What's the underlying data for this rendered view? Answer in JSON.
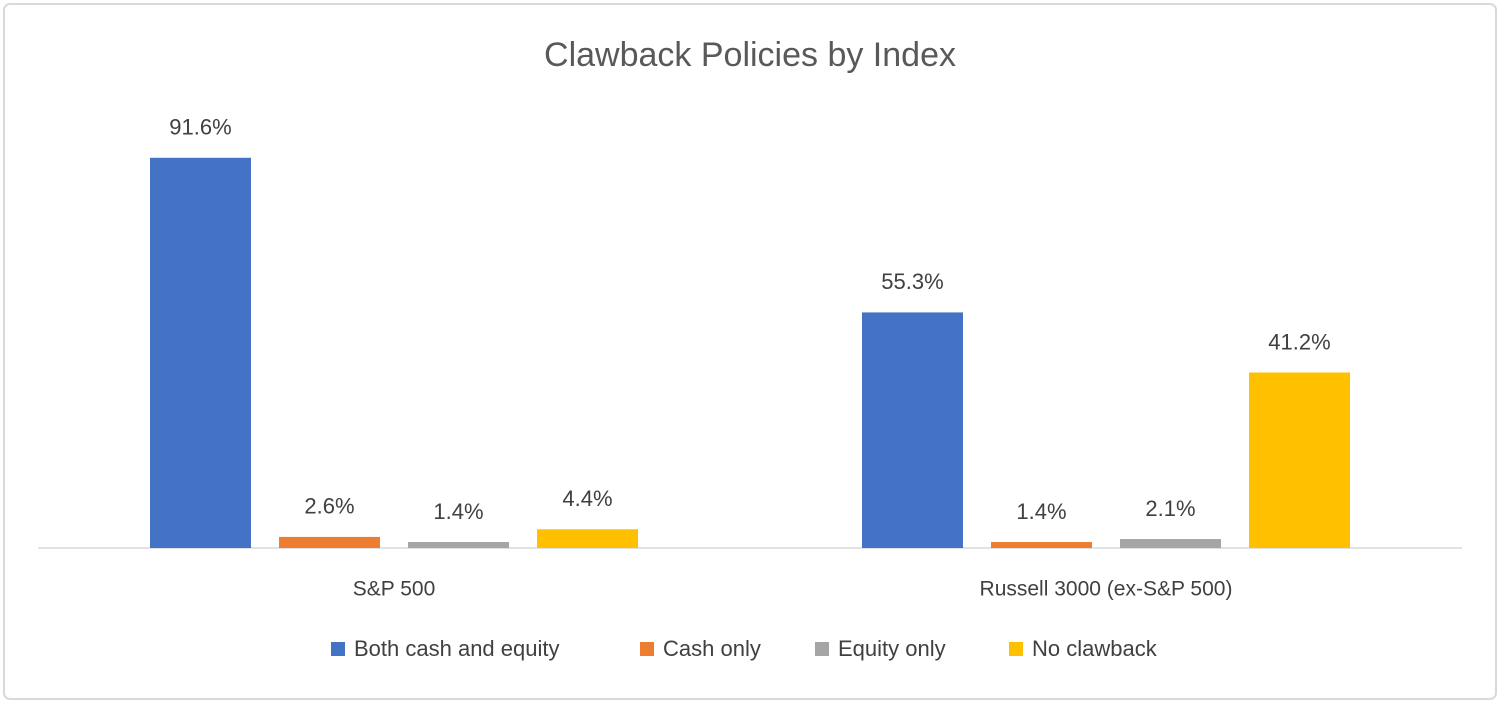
{
  "chart_data": {
    "type": "bar",
    "title": "Clawback Policies by Index",
    "categories": [
      "S&P 500",
      "Russell 3000 (ex-S&P 500)"
    ],
    "series": [
      {
        "name": "Both cash and equity",
        "color": "#4472c4",
        "values": [
          91.6,
          55.3
        ],
        "value_labels": [
          "91.6%",
          "55.3%"
        ]
      },
      {
        "name": "Cash only",
        "color": "#ed7d31",
        "values": [
          2.6,
          1.4
        ],
        "value_labels": [
          "2.6%",
          "1.4%"
        ]
      },
      {
        "name": "Equity only",
        "color": "#a5a5a5",
        "values": [
          1.4,
          2.1
        ],
        "value_labels": [
          "1.4%",
          "2.1%"
        ]
      },
      {
        "name": "No clawback",
        "color": "#ffc000",
        "values": [
          4.4,
          41.2
        ],
        "value_labels": [
          "4.4%",
          "41.2%"
        ]
      }
    ],
    "legend": "bottom"
  }
}
